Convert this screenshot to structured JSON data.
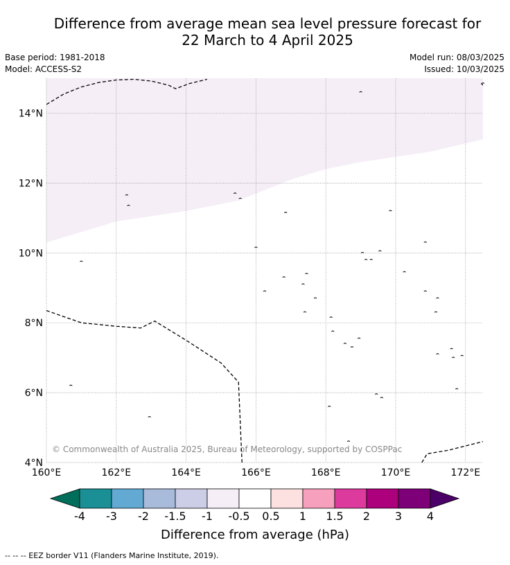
{
  "title_line1": "Difference from average mean sea level pressure forecast for",
  "title_line2": "22 March to 4 April 2025",
  "meta_left": [
    "Base period: 1981-2018",
    "Model: ACCESS-S2"
  ],
  "meta_right": [
    "Model run: 08/03/2025",
    "Issued: 10/03/2025"
  ],
  "map": {
    "lon_range": [
      160,
      172.5
    ],
    "lat_range": [
      4,
      15
    ],
    "lon_ticks": [
      "160°E",
      "162°E",
      "164°E",
      "166°E",
      "168°E",
      "170°E",
      "172°E"
    ],
    "lat_ticks": [
      "4°N",
      "6°N",
      "8°N",
      "10°N",
      "12°N",
      "14°N"
    ],
    "shaded_category": "-1 to -0.5",
    "shade_color": "#f5eef7",
    "shaded_region_southern_edge": [
      [
        160,
        10.3
      ],
      [
        162,
        10.9
      ],
      [
        164,
        11.2
      ],
      [
        165.5,
        11.5
      ],
      [
        166,
        11.7
      ],
      [
        167,
        12.1
      ],
      [
        168,
        12.4
      ],
      [
        169,
        12.6
      ],
      [
        170,
        12.75
      ],
      [
        171,
        12.9
      ],
      [
        172.5,
        13.25
      ]
    ],
    "eez_borders": [
      [
        [
          160,
          14.25
        ],
        [
          160.5,
          14.55
        ],
        [
          161,
          14.75
        ],
        [
          161.5,
          14.88
        ],
        [
          162,
          14.95
        ],
        [
          162.5,
          14.97
        ],
        [
          163,
          14.92
        ],
        [
          163.5,
          14.8
        ],
        [
          163.7,
          14.7
        ],
        [
          164.1,
          14.85
        ],
        [
          164.6,
          14.97
        ]
      ],
      [
        [
          160,
          8.35
        ],
        [
          161,
          8.0
        ],
        [
          162,
          7.9
        ],
        [
          162.7,
          7.85
        ],
        [
          163.1,
          8.05
        ],
        [
          164,
          7.5
        ],
        [
          165,
          6.85
        ],
        [
          165.5,
          6.3
        ],
        [
          165.6,
          4.0
        ]
      ],
      [
        [
          170.75,
          4.0
        ],
        [
          170.9,
          4.25
        ],
        [
          171.5,
          4.35
        ],
        [
          172.5,
          4.6
        ]
      ],
      [
        [
          172.45,
          14.85
        ],
        [
          172.5,
          14.8
        ]
      ]
    ],
    "copyright": "© Commonwealth of Australia 2025, Bureau of Meteorology, supported by COSPPac"
  },
  "colorbar": {
    "title": "Difference from average (hPa)",
    "labels": [
      "-4",
      "-3",
      "-2",
      "-1.5",
      "-1",
      "-0.5",
      "0.5",
      "1",
      "1.5",
      "2",
      "3",
      "4"
    ],
    "under_color": "#006e5b",
    "over_color": "#4b0068",
    "colors": [
      "#1a9096",
      "#62a9d4",
      "#a8bbdb",
      "#cccde6",
      "#f5eef7",
      "#ffffff",
      "#fde0e0",
      "#f7a0bd",
      "#dd3a9e",
      "#ad007c",
      "#7d0079"
    ]
  },
  "footer": "--  --  -- EEZ border V11 (Flanders Marine Institute, 2019)."
}
